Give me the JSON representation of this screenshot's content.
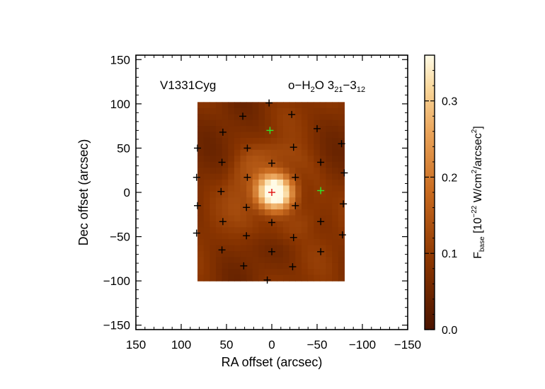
{
  "chart_data": {
    "type": "heatmap",
    "title": "V1331Cyg",
    "line_label": {
      "prefix": "o−H",
      "sub1": "2",
      "mid": "O 3",
      "sub2": "21",
      "dash": "−3",
      "sub3": "12"
    },
    "xlabel": "RA offset (arcsec)",
    "ylabel": "Dec offset (arcsec)",
    "xlim": [
      150,
      -150
    ],
    "ylim": [
      -155,
      155
    ],
    "xticks": [
      150,
      100,
      50,
      0,
      -50,
      -100,
      -150
    ],
    "xtick_labels": [
      "150",
      "100",
      "50",
      "0",
      "−50",
      "−100",
      "−150"
    ],
    "yticks": [
      -150,
      -100,
      -50,
      0,
      50,
      100,
      150
    ],
    "ytick_labels": [
      "−150",
      "−100",
      "−50",
      "0",
      "50",
      "100",
      "150"
    ],
    "map_extent": {
      "x": [
        82,
        -80
      ],
      "y": [
        -100,
        102
      ]
    },
    "peak": {
      "x": 0,
      "y": 0,
      "value": 0.36
    },
    "colorbar": {
      "label": {
        "base": "F",
        "sub": "base",
        "units_start": " [10",
        "exp1": "−22",
        "units_mid": " W/cm",
        "exp2": "2",
        "units_mid2": "/arcsec",
        "exp3": "2",
        "units_end": "]"
      },
      "range": [
        0,
        0.36
      ],
      "ticks": [
        0.0,
        0.1,
        0.2,
        0.3
      ],
      "tick_labels": [
        "0.0",
        "0.1",
        "0.2",
        "0.3"
      ],
      "colors": [
        "#4a1400",
        "#8a3500",
        "#c86a1f",
        "#eaa45a",
        "#f9d79b",
        "#fffbe6"
      ]
    },
    "spaxels_black": [
      [
        3,
        101
      ],
      [
        -22,
        88
      ],
      [
        32,
        86
      ],
      [
        -50,
        72
      ],
      [
        54,
        68
      ],
      [
        -77,
        55
      ],
      [
        -24,
        51
      ],
      [
        82,
        50
      ],
      [
        27,
        50
      ],
      [
        0,
        33
      ],
      [
        55,
        34
      ],
      [
        -54,
        34
      ],
      [
        -80,
        22
      ],
      [
        27,
        17
      ],
      [
        83,
        17
      ],
      [
        -26,
        17
      ],
      [
        56,
        1
      ],
      [
        -79,
        -13
      ],
      [
        -26,
        -15
      ],
      [
        82,
        -15
      ],
      [
        28,
        -17
      ],
      [
        0,
        -34
      ],
      [
        54,
        -33
      ],
      [
        -54,
        -33
      ],
      [
        83,
        -46
      ],
      [
        -78,
        -48
      ],
      [
        28,
        -49
      ],
      [
        -24,
        -51
      ],
      [
        55,
        -65
      ],
      [
        0,
        -67
      ],
      [
        -54,
        -67
      ],
      [
        31,
        -83
      ],
      [
        -23,
        -84
      ],
      [
        5,
        -99
      ]
    ],
    "spaxels_green": [
      [
        2,
        70
      ],
      [
        -54,
        2
      ]
    ],
    "spaxel_red": [
      0,
      0
    ],
    "marker_colors": {
      "black": "#000000",
      "green": "#2ee82e",
      "red": "#e01010"
    }
  }
}
